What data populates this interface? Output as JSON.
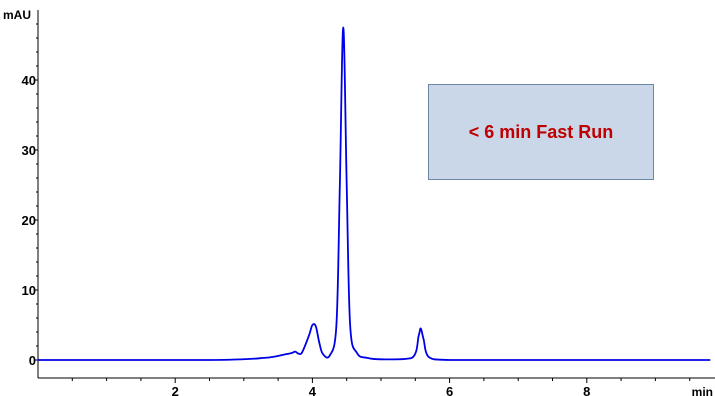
{
  "chart_data": {
    "type": "line",
    "title": "",
    "xlabel": "min",
    "ylabel": "mAU",
    "xlim": [
      0,
      9.8
    ],
    "ylim": [
      -2,
      49
    ],
    "xticks": [
      2,
      4,
      6,
      8
    ],
    "yticks": [
      0,
      10,
      20,
      30,
      40
    ],
    "grid": false,
    "annotation": "< 6 min Fast Run",
    "series": [
      {
        "color": "#0000e6",
        "x": [
          0,
          2.5,
          3.3,
          3.6,
          3.7,
          3.75,
          3.8,
          3.85,
          3.95,
          4.0,
          4.05,
          4.1,
          4.15,
          4.25,
          4.35,
          4.4,
          4.45,
          4.5,
          4.55,
          4.65,
          4.8,
          5.0,
          5.45,
          5.55,
          5.58,
          5.62,
          5.7,
          6.0,
          7.0,
          8.0,
          9.8
        ],
        "y": [
          0,
          0,
          0.3,
          0.8,
          1.0,
          1.2,
          0.9,
          1.1,
          3.5,
          5.0,
          4.8,
          2.5,
          0.9,
          0.6,
          5.0,
          25.0,
          47.5,
          25.0,
          5.0,
          1.0,
          0.3,
          0.1,
          0.3,
          3.5,
          4.5,
          3.0,
          0.4,
          0,
          0,
          0,
          0
        ]
      }
    ]
  }
}
